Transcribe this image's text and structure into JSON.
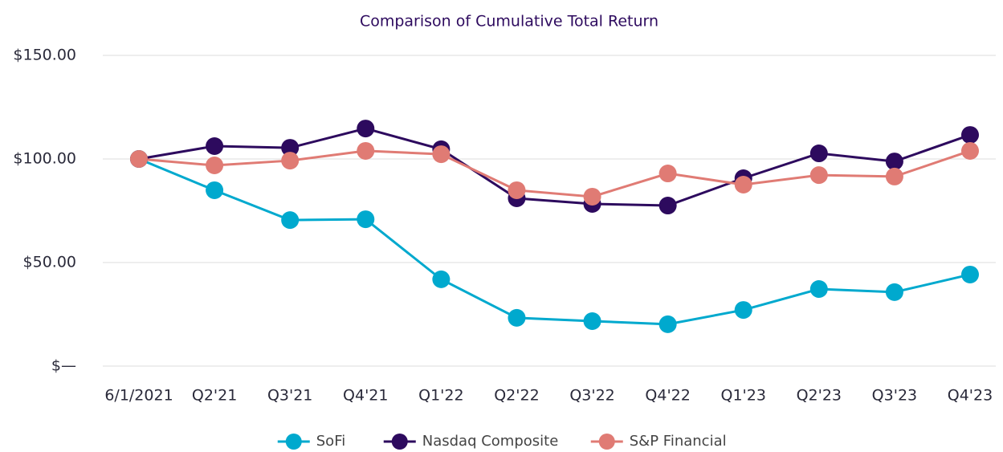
{
  "chart_data": {
    "type": "line",
    "title": "Comparison of Cumulative Total Return",
    "categories": [
      "6/1/2021",
      "Q2'21",
      "Q3'21",
      "Q4'21",
      "Q1'22",
      "Q2'22",
      "Q3'22",
      "Q4'22",
      "Q1'23",
      "Q2'23",
      "Q3'23",
      "Q4'23"
    ],
    "series": [
      {
        "name": "SoFi",
        "color": "#00a9ce",
        "values": [
          100,
          84.9,
          70.5,
          70.9,
          41.9,
          23.3,
          21.7,
          20.2,
          27.1,
          37.2,
          35.7,
          44.2
        ]
      },
      {
        "name": "Nasdaq Composite",
        "color": "#2d0a5e",
        "values": [
          100,
          106.2,
          105.4,
          114.7,
          104.7,
          81.0,
          78.3,
          77.5,
          90.7,
          102.7,
          98.8,
          111.6
        ]
      },
      {
        "name": "S&P Financial",
        "color": "#e07b74",
        "values": [
          100,
          96.9,
          99.2,
          103.9,
          102.3,
          84.9,
          81.8,
          93.0,
          87.6,
          92.2,
          91.5,
          103.9
        ]
      }
    ],
    "ylim": [
      0,
      150
    ],
    "yticks": [
      {
        "value": 0,
        "label": "$—"
      },
      {
        "value": 50,
        "label": "$50.00"
      },
      {
        "value": 100,
        "label": "$100.00"
      },
      {
        "value": 150,
        "label": "$150.00"
      }
    ],
    "grid": true,
    "legend": "bottom"
  }
}
